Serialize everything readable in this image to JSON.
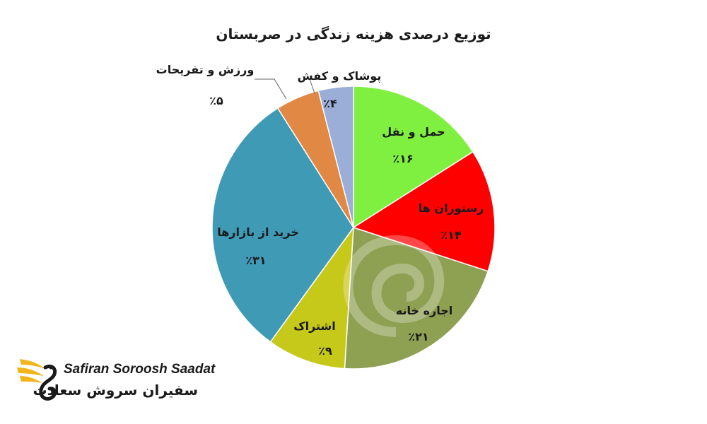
{
  "chart_data": {
    "type": "pie",
    "title": "توزیع درصدی هزینه زندگی در صربستان",
    "slices": [
      {
        "label": "حمل و نقل",
        "value": 16,
        "value_label": "٪۱۶",
        "color": "#80f040"
      },
      {
        "label": "رستوران ها",
        "value": 14,
        "value_label": "٪۱۴",
        "color": "#ff0000"
      },
      {
        "label": "اجاره خانه",
        "value": 21,
        "value_label": "٪۲۱",
        "color": "#8ea052"
      },
      {
        "label": "اشتراک",
        "value": 9,
        "value_label": "٪۹",
        "color": "#c6c81a"
      },
      {
        "label": "خرید از بازارها",
        "value": 31,
        "value_label": "٪۳۱",
        "color": "#3f9ab6"
      },
      {
        "label": "ورزش و تفریحات",
        "value": 5,
        "value_label": "٪۵",
        "color": "#e08844"
      },
      {
        "label": "پوشاک و کفش",
        "value": 4,
        "value_label": "٪۴",
        "color": "#9aaed8"
      }
    ],
    "legend": "none"
  },
  "logo": {
    "latin": "Safiran Soroosh Saadat",
    "farsi": "سفیران سروش سعادت"
  }
}
